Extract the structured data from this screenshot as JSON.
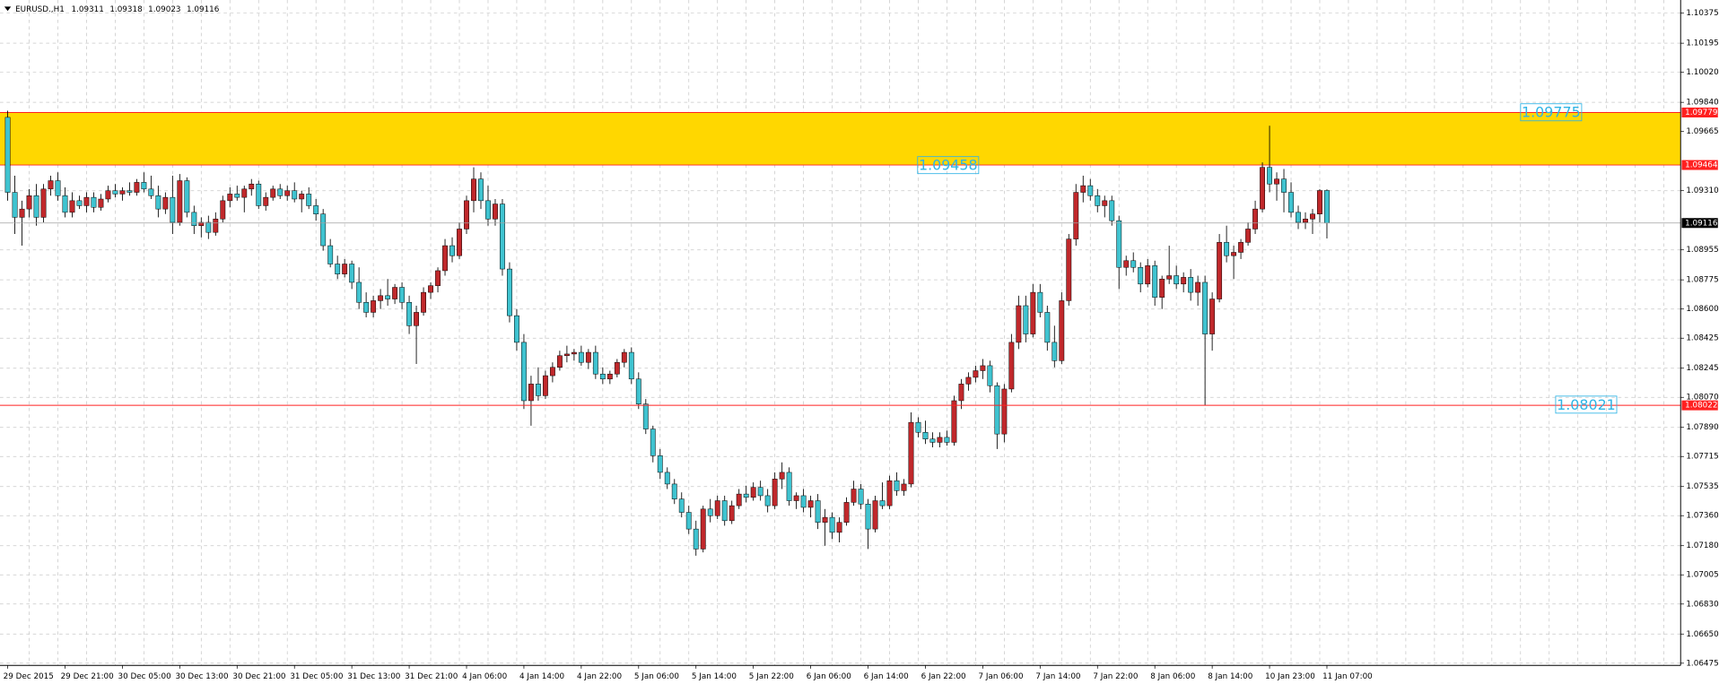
{
  "chart_data": {
    "type": "candlestick",
    "title": "EURUSD.,H1",
    "bull_color": "#c0282b",
    "bear_color": "#3fc3d0",
    "grid": true,
    "ylim": [
      1.06462,
      1.10454
    ],
    "yticks": [
      1.10375,
      1.10195,
      {
        "value": 1.1002,
        "label": "1.10020"
      },
      {
        "value": 1.0984,
        "label": "1.09840"
      },
      1.09665,
      {
        "value": 1.0931,
        "label": "1.09310"
      },
      1.08955,
      1.08775,
      {
        "value": 1.086,
        "label": "1.08600"
      },
      1.08425,
      1.08245,
      {
        "value": 1.0807,
        "label": "1.08070"
      },
      {
        "value": 1.0789,
        "label": "1.07890"
      },
      1.07715,
      1.07535,
      {
        "value": 1.0736,
        "label": "1.07360"
      },
      {
        "value": 1.0718,
        "label": "1.07180"
      },
      1.07005,
      {
        "value": 1.0683,
        "label": "1.06830"
      },
      {
        "value": 1.0665,
        "label": "1.06650"
      },
      1.06475
    ],
    "zone": {
      "top": 1.09779,
      "bottom": 1.09464,
      "color": "#ffd700"
    },
    "levels": [
      {
        "value": 1.08022,
        "color": "#ff2020"
      }
    ],
    "price_labels": [
      1.09775,
      1.09458,
      1.08021
    ],
    "categories": [
      "29 Dec 2015",
      null,
      null,
      null,
      null,
      null,
      null,
      null,
      "29 Dec 21:00",
      null,
      null,
      null,
      null,
      null,
      null,
      null,
      "30 Dec 05:00",
      null,
      null,
      null,
      null,
      null,
      null,
      null,
      "30 Dec 13:00",
      null,
      null,
      null,
      null,
      null,
      null,
      null,
      "30 Dec 21:00",
      null,
      null,
      null,
      null,
      null,
      null,
      null,
      "31 Dec 05:00",
      null,
      null,
      null,
      null,
      null,
      null,
      null,
      "31 Dec 13:00",
      null,
      null,
      null,
      null,
      null,
      null,
      null,
      "31 Dec 21:00",
      null,
      null,
      null,
      null,
      null,
      null,
      null,
      "4 Jan 06:00",
      null,
      null,
      null,
      null,
      null,
      null,
      null,
      "4 Jan 14:00",
      null,
      null,
      null,
      null,
      null,
      null,
      null,
      "4 Jan 22:00",
      null,
      null,
      null,
      null,
      null,
      null,
      null,
      "5 Jan 06:00",
      null,
      null,
      null,
      null,
      null,
      null,
      null,
      "5 Jan 14:00",
      null,
      null,
      null,
      null,
      null,
      null,
      null,
      "5 Jan 22:00",
      null,
      null,
      null,
      null,
      null,
      null,
      null,
      "6 Jan 06:00",
      null,
      null,
      null,
      null,
      null,
      null,
      null,
      "6 Jan 14:00",
      null,
      null,
      null,
      null,
      null,
      null,
      null,
      "6 Jan 22:00",
      null,
      null,
      null,
      null,
      null,
      null,
      null,
      "7 Jan 06:00",
      null,
      null,
      null,
      null,
      null,
      null,
      null,
      "7 Jan 14:00",
      null,
      null,
      null,
      null,
      null,
      null,
      null,
      "7 Jan 22:00",
      null,
      null,
      null,
      null,
      null,
      null,
      null,
      "8 Jan 06:00",
      null,
      null,
      null,
      null,
      null,
      null,
      null,
      "8 Jan 14:00",
      null,
      null,
      null,
      null,
      null,
      null,
      null,
      "10 Jan 23:00",
      null,
      null,
      null,
      null,
      null,
      null,
      null,
      "11 Jan 07:00"
    ],
    "candles": [
      [
        1.0975,
        1.0979,
        1.0925,
        1.093
      ],
      [
        1.093,
        1.094,
        1.0905,
        1.0915
      ],
      [
        1.0915,
        1.0925,
        1.0898,
        1.092
      ],
      [
        1.092,
        1.0932,
        1.0915,
        1.0928
      ],
      [
        1.0928,
        1.0935,
        1.091,
        1.0915
      ],
      [
        1.0915,
        1.0935,
        1.0912,
        1.0932
      ],
      [
        1.0932,
        1.094,
        1.0928,
        1.0937
      ],
      [
        1.0937,
        1.0942,
        1.0925,
        1.0928
      ],
      [
        1.0928,
        1.0933,
        1.0915,
        1.0918
      ],
      [
        1.0918,
        1.093,
        1.0915,
        1.0925
      ],
      [
        1.0925,
        1.0928,
        1.092,
        1.0922
      ],
      [
        1.0922,
        1.093,
        1.0918,
        1.0927
      ],
      [
        1.0927,
        1.093,
        1.0918,
        1.0921
      ],
      [
        1.0921,
        1.0929,
        1.0919,
        1.0926
      ],
      [
        1.0926,
        1.0934,
        1.0924,
        1.0931
      ],
      [
        1.0931,
        1.0935,
        1.0927,
        1.0929
      ],
      [
        1.0929,
        1.0933,
        1.0925,
        1.0931
      ],
      [
        1.0931,
        1.0936,
        1.0928,
        1.093
      ],
      [
        1.093,
        1.0938,
        1.0928,
        1.0936
      ],
      [
        1.0936,
        1.0942,
        1.093,
        1.0932
      ],
      [
        1.0932,
        1.094,
        1.0926,
        1.0928
      ],
      [
        1.0928,
        1.0934,
        1.0915,
        1.092
      ],
      [
        1.092,
        1.093,
        1.0917,
        1.0927
      ],
      [
        1.0927,
        1.094,
        1.0905,
        1.0912
      ],
      [
        1.0912,
        1.0941,
        1.091,
        1.0937
      ],
      [
        1.0937,
        1.0939,
        1.0915,
        1.0918
      ],
      [
        1.0918,
        1.0922,
        1.0905,
        1.091
      ],
      [
        1.091,
        1.0915,
        1.0903,
        1.0912
      ],
      [
        1.0912,
        1.0916,
        1.0902,
        1.0906
      ],
      [
        1.0906,
        1.0918,
        1.0904,
        1.0914
      ],
      [
        1.0914,
        1.0928,
        1.0912,
        1.0925
      ],
      [
        1.0925,
        1.0933,
        1.0921,
        1.0929
      ],
      [
        1.0929,
        1.0934,
        1.0925,
        1.0927
      ],
      [
        1.0927,
        1.0934,
        1.0918,
        1.0932
      ],
      [
        1.0932,
        1.0938,
        1.0928,
        1.0935
      ],
      [
        1.0935,
        1.0937,
        1.092,
        1.0922
      ],
      [
        1.0922,
        1.093,
        1.0919,
        1.0927
      ],
      [
        1.0927,
        1.0934,
        1.0925,
        1.0932
      ],
      [
        1.0932,
        1.0935,
        1.0926,
        1.0928
      ],
      [
        1.0928,
        1.0934,
        1.0925,
        1.0931
      ],
      [
        1.0931,
        1.0936,
        1.0924,
        1.0926
      ],
      [
        1.0926,
        1.0931,
        1.0918,
        1.0929
      ],
      [
        1.0929,
        1.0933,
        1.092,
        1.0922
      ],
      [
        1.0922,
        1.0926,
        1.0913,
        1.0917
      ],
      [
        1.0917,
        1.092,
        1.0895,
        1.0898
      ],
      [
        1.0898,
        1.0902,
        1.0885,
        1.0887
      ],
      [
        1.0887,
        1.0892,
        1.0878,
        1.0881
      ],
      [
        1.0881,
        1.089,
        1.0879,
        1.0887
      ],
      [
        1.0887,
        1.0889,
        1.0872,
        1.0876
      ],
      [
        1.0876,
        1.0885,
        1.086,
        1.0864
      ],
      [
        1.0864,
        1.087,
        1.0855,
        1.0858
      ],
      [
        1.0858,
        1.0868,
        1.0855,
        1.0865
      ],
      [
        1.0865,
        1.0872,
        1.086,
        1.0868
      ],
      [
        1.0868,
        1.0878,
        1.0862,
        1.0866
      ],
      [
        1.0866,
        1.0875,
        1.0863,
        1.0873
      ],
      [
        1.0873,
        1.0876,
        1.086,
        1.0864
      ],
      [
        1.0864,
        1.0868,
        1.0845,
        1.085
      ],
      [
        1.085,
        1.0862,
        1.0827,
        1.0858
      ],
      [
        1.0858,
        1.0873,
        1.0856,
        1.087
      ],
      [
        1.087,
        1.0876,
        1.0866,
        1.0874
      ],
      [
        1.0874,
        1.0885,
        1.087,
        1.0883
      ],
      [
        1.0883,
        1.0902,
        1.088,
        1.0898
      ],
      [
        1.0898,
        1.0903,
        1.0888,
        1.0892
      ],
      [
        1.0892,
        1.0912,
        1.089,
        1.0908
      ],
      [
        1.0908,
        1.0928,
        1.0905,
        1.0925
      ],
      [
        1.0925,
        1.0945,
        1.0918,
        1.0938
      ],
      [
        1.0938,
        1.0942,
        1.092,
        1.0925
      ],
      [
        1.0925,
        1.0934,
        1.091,
        1.0914
      ],
      [
        1.0914,
        1.0926,
        1.091,
        1.0923
      ],
      [
        1.0923,
        1.0926,
        1.088,
        1.0884
      ],
      [
        1.0884,
        1.0888,
        1.0852,
        1.0856
      ],
      [
        1.0856,
        1.086,
        1.0835,
        1.084
      ],
      [
        1.084,
        1.0845,
        1.08,
        1.0805
      ],
      [
        1.0805,
        1.082,
        1.079,
        1.0815
      ],
      [
        1.0815,
        1.0825,
        1.0805,
        1.0808
      ],
      [
        1.0808,
        1.0823,
        1.0806,
        1.082
      ],
      [
        1.082,
        1.0828,
        1.0816,
        1.0825
      ],
      [
        1.0825,
        1.0835,
        1.0823,
        1.0832
      ],
      [
        1.0832,
        1.0838,
        1.0828,
        1.0833
      ],
      [
        1.0833,
        1.0836,
        1.0829,
        1.0834
      ],
      [
        1.0834,
        1.0838,
        1.0826,
        1.0828
      ],
      [
        1.0828,
        1.0836,
        1.0824,
        1.0834
      ],
      [
        1.0834,
        1.0838,
        1.0818,
        1.0821
      ],
      [
        1.0821,
        1.0825,
        1.0815,
        1.0818
      ],
      [
        1.0818,
        1.0823,
        1.0815,
        1.0821
      ],
      [
        1.0821,
        1.083,
        1.0819,
        1.0828
      ],
      [
        1.0828,
        1.0836,
        1.0825,
        1.0834
      ],
      [
        1.0834,
        1.0837,
        1.0815,
        1.0818
      ],
      [
        1.0818,
        1.0822,
        1.08,
        1.0803
      ],
      [
        1.0803,
        1.0806,
        1.0785,
        1.0788
      ],
      [
        1.0788,
        1.079,
        1.0768,
        1.0772
      ],
      [
        1.0772,
        1.0776,
        1.0758,
        1.0762
      ],
      [
        1.0762,
        1.0765,
        1.0752,
        1.0755
      ],
      [
        1.0755,
        1.0758,
        1.0743,
        1.0746
      ],
      [
        1.0746,
        1.075,
        1.0735,
        1.0738
      ],
      [
        1.0738,
        1.0742,
        1.0725,
        1.0728
      ],
      [
        1.0728,
        1.0733,
        1.0712,
        1.0716
      ],
      [
        1.0716,
        1.0742,
        1.0714,
        1.074
      ],
      [
        1.074,
        1.0746,
        1.0732,
        1.0736
      ],
      [
        1.0736,
        1.0748,
        1.0734,
        1.0745
      ],
      [
        1.0745,
        1.0748,
        1.073,
        1.0733
      ],
      [
        1.0733,
        1.0745,
        1.0731,
        1.0742
      ],
      [
        1.0742,
        1.0752,
        1.074,
        1.0749
      ],
      [
        1.0749,
        1.0754,
        1.0744,
        1.0747
      ],
      [
        1.0747,
        1.0756,
        1.0745,
        1.0753
      ],
      [
        1.0753,
        1.0757,
        1.0745,
        1.0748
      ],
      [
        1.0748,
        1.0752,
        1.0738,
        1.0742
      ],
      [
        1.0742,
        1.0762,
        1.074,
        1.0758
      ],
      [
        1.0758,
        1.0768,
        1.0752,
        1.0762
      ],
      [
        1.0762,
        1.0765,
        1.0742,
        1.0745
      ],
      [
        1.0745,
        1.075,
        1.074,
        1.0748
      ],
      [
        1.0748,
        1.0752,
        1.0738,
        1.0741
      ],
      [
        1.0741,
        1.0748,
        1.0735,
        1.0745
      ],
      [
        1.0745,
        1.0749,
        1.0728,
        1.0732
      ],
      [
        1.0732,
        1.074,
        1.0718,
        1.0735
      ],
      [
        1.0735,
        1.0738,
        1.0722,
        1.0726
      ],
      [
        1.0726,
        1.0735,
        1.072,
        1.0732
      ],
      [
        1.0732,
        1.0747,
        1.073,
        1.0744
      ],
      [
        1.0744,
        1.0757,
        1.0742,
        1.0752
      ],
      [
        1.0752,
        1.0755,
        1.074,
        1.0743
      ],
      [
        1.0743,
        1.0746,
        1.0716,
        1.0728
      ],
      [
        1.0728,
        1.0748,
        1.0726,
        1.0745
      ],
      [
        1.0745,
        1.0756,
        1.074,
        1.0742
      ],
      [
        1.0742,
        1.076,
        1.074,
        1.0757
      ],
      [
        1.0757,
        1.0762,
        1.0748,
        1.0751
      ],
      [
        1.0751,
        1.0758,
        1.0748,
        1.0755
      ],
      [
        1.0755,
        1.0798,
        1.0753,
        1.0792
      ],
      [
        1.0792,
        1.0795,
        1.0783,
        1.0786
      ],
      [
        1.0786,
        1.0793,
        1.0779,
        1.0782
      ],
      [
        1.0782,
        1.0786,
        1.0777,
        1.078
      ],
      [
        1.078,
        1.0786,
        1.0777,
        1.0783
      ],
      [
        1.0783,
        1.0787,
        1.0778,
        1.078
      ],
      [
        1.078,
        1.0808,
        1.0778,
        1.0805
      ],
      [
        1.0805,
        1.0818,
        1.08,
        1.0815
      ],
      [
        1.0815,
        1.0822,
        1.0811,
        1.0819
      ],
      [
        1.0819,
        1.0826,
        1.0816,
        1.0823
      ],
      [
        1.0823,
        1.083,
        1.0818,
        1.0826
      ],
      [
        1.0826,
        1.0829,
        1.081,
        1.0814
      ],
      [
        1.0814,
        1.0816,
        1.0776,
        1.0785
      ],
      [
        1.0785,
        1.0815,
        1.078,
        1.0812
      ],
      [
        1.0812,
        1.0845,
        1.081,
        1.084
      ],
      [
        1.084,
        1.0868,
        1.0836,
        1.0862
      ],
      [
        1.0862,
        1.0868,
        1.084,
        1.0845
      ],
      [
        1.0845,
        1.0875,
        1.0843,
        1.087
      ],
      [
        1.087,
        1.0875,
        1.0855,
        1.0858
      ],
      [
        1.0858,
        1.0862,
        1.0835,
        1.084
      ],
      [
        1.084,
        1.085,
        1.0825,
        1.0829
      ],
      [
        1.0829,
        1.087,
        1.0827,
        1.0865
      ],
      [
        1.0865,
        1.0905,
        1.0862,
        1.0902
      ],
      [
        1.0902,
        1.0935,
        1.0898,
        1.093
      ],
      [
        1.093,
        1.094,
        1.0924,
        1.0934
      ],
      [
        1.0934,
        1.0938,
        1.0925,
        1.0928
      ],
      [
        1.0928,
        1.0932,
        1.0918,
        1.0922
      ],
      [
        1.0922,
        1.0928,
        1.0915,
        1.0925
      ],
      [
        1.0925,
        1.0928,
        1.091,
        1.0913
      ],
      [
        1.0913,
        1.0916,
        1.0872,
        1.0885
      ],
      [
        1.0885,
        1.0892,
        1.088,
        1.0889
      ],
      [
        1.0889,
        1.0894,
        1.0882,
        1.0885
      ],
      [
        1.0885,
        1.0888,
        1.087,
        1.0875
      ],
      [
        1.0875,
        1.089,
        1.0873,
        1.0886
      ],
      [
        1.0886,
        1.0889,
        1.0862,
        1.0867
      ],
      [
        1.0867,
        1.088,
        1.086,
        1.0878
      ],
      [
        1.0878,
        1.0898,
        1.0875,
        1.088
      ],
      [
        1.088,
        1.0886,
        1.0872,
        1.0875
      ],
      [
        1.0875,
        1.0882,
        1.087,
        1.0879
      ],
      [
        1.0879,
        1.0884,
        1.0865,
        1.087
      ],
      [
        1.087,
        1.088,
        1.0862,
        1.0876
      ],
      [
        1.0876,
        1.088,
        1.0802,
        1.0845
      ],
      [
        1.0845,
        1.087,
        1.0835,
        1.0866
      ],
      [
        1.0866,
        1.0905,
        1.0864,
        1.09
      ],
      [
        1.09,
        1.091,
        1.0888,
        1.0892
      ],
      [
        1.0892,
        1.0898,
        1.0878,
        1.0894
      ],
      [
        1.0894,
        1.0902,
        1.089,
        1.09
      ],
      [
        1.09,
        1.0912,
        1.0898,
        1.0908
      ],
      [
        1.0908,
        1.0925,
        1.0905,
        1.092
      ],
      [
        1.092,
        1.0948,
        1.0918,
        1.0945
      ],
      [
        1.0945,
        1.097,
        1.093,
        1.0935
      ],
      [
        1.0935,
        1.0942,
        1.0925,
        1.0938
      ],
      [
        1.0938,
        1.0944,
        1.0918,
        1.093
      ],
      [
        1.093,
        1.0936,
        1.0915,
        1.0918
      ],
      [
        1.0918,
        1.0922,
        1.0908,
        1.0912
      ],
      [
        1.0912,
        1.0918,
        1.0908,
        1.0914
      ],
      [
        1.0914,
        1.092,
        1.0905,
        1.0917
      ],
      [
        1.0917,
        1.0932,
        1.0912,
        1.09311
      ],
      [
        1.09311,
        1.09318,
        1.09023,
        1.09116
      ]
    ]
  }
}
